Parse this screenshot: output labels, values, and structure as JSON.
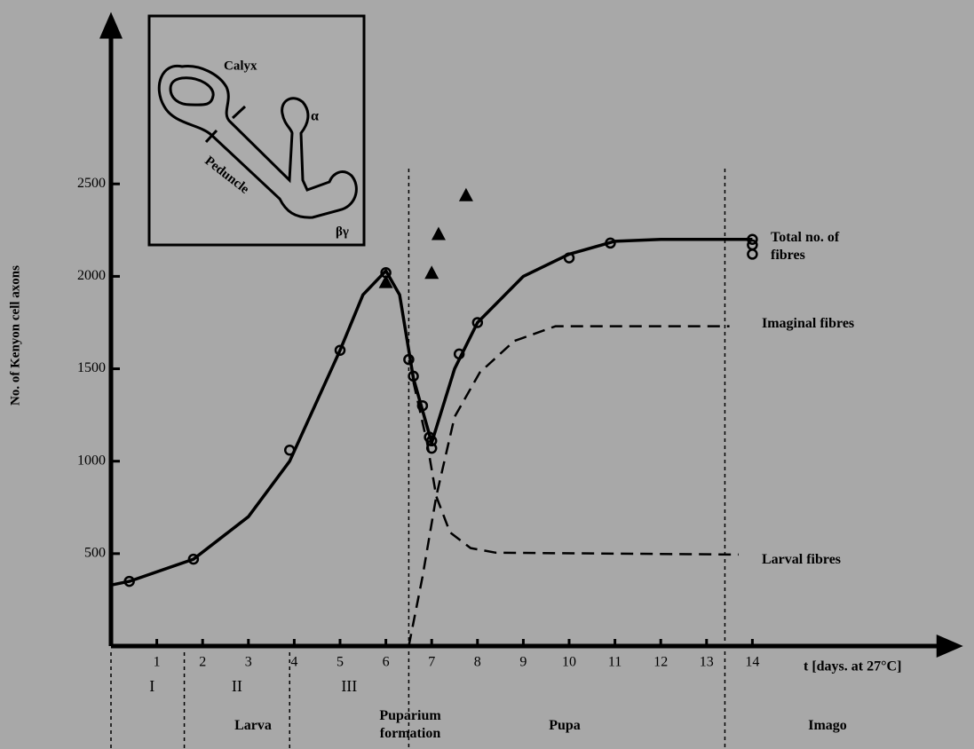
{
  "chart_data": {
    "type": "line",
    "y_label": "No. of Kenyon cell axons",
    "x_label": "t [days. at 27°C]",
    "xlim": [
      0,
      18.6
    ],
    "ylim": [
      0,
      3430
    ],
    "xticks": [
      1,
      2,
      3,
      4,
      5,
      6,
      7,
      8,
      9,
      10,
      11,
      12,
      13,
      14
    ],
    "yticks": [
      500,
      1000,
      1500,
      2000,
      2500
    ],
    "phase_boundaries": [
      1.6,
      3.9,
      6.5,
      13.4
    ],
    "stages": [
      "I",
      "II",
      "III"
    ],
    "phases": [
      "Larva",
      "Puparium formation",
      "Pupa",
      "Imago"
    ],
    "series": [
      {
        "name": "Total no. of fibres",
        "color": "#000000",
        "style": "solid",
        "x": [
          0,
          0.4,
          1.8,
          3,
          3.9,
          5,
          5.5,
          6,
          6.3,
          6.6,
          7.0,
          7.5,
          8,
          9,
          10,
          11,
          12,
          14
        ],
        "values": [
          330,
          350,
          470,
          700,
          1000,
          1600,
          1900,
          2030,
          1900,
          1450,
          1100,
          1500,
          1750,
          2000,
          2120,
          2190,
          2200,
          2200
        ]
      },
      {
        "name": "Imaginal fibres",
        "color": "#000000",
        "style": "dashed",
        "x": [
          6.5,
          6.8,
          7.1,
          7.5,
          8.05,
          8.8,
          9.7,
          13.5
        ],
        "values": [
          0,
          375,
          810,
          1240,
          1480,
          1650,
          1730,
          1730
        ]
      },
      {
        "name": "Larval fibres",
        "color": "#000000",
        "style": "dashed",
        "x": [
          6.6,
          6.9,
          7.1,
          7.4,
          7.85,
          8.4,
          13.7
        ],
        "values": [
          1430,
          1100,
          810,
          615,
          530,
          505,
          495
        ]
      },
      {
        "color": "#000000",
        "marker": "circle",
        "x": [
          0.4,
          1.8,
          3.9,
          5.0,
          6.0,
          6.5,
          6.6,
          6.8,
          6.95,
          7.0,
          7.0,
          7.6,
          8.0,
          10.0,
          10.9,
          14.0,
          14.0,
          14.0
        ],
        "values": [
          350,
          470,
          1060,
          1600,
          2020,
          1550,
          1460,
          1300,
          1130,
          1070,
          1110,
          1580,
          1750,
          2100,
          2180,
          2200,
          2170,
          2120
        ]
      },
      {
        "color": "#000000",
        "marker": "triangle",
        "x": [
          6.0,
          7.0,
          7.15,
          7.75
        ],
        "values": [
          1970,
          2020,
          2230,
          2440
        ]
      }
    ],
    "inset": {
      "calyx": "Calyx",
      "alpha": "α",
      "peduncle": "Peduncle",
      "beta_gamma": "βγ"
    }
  }
}
